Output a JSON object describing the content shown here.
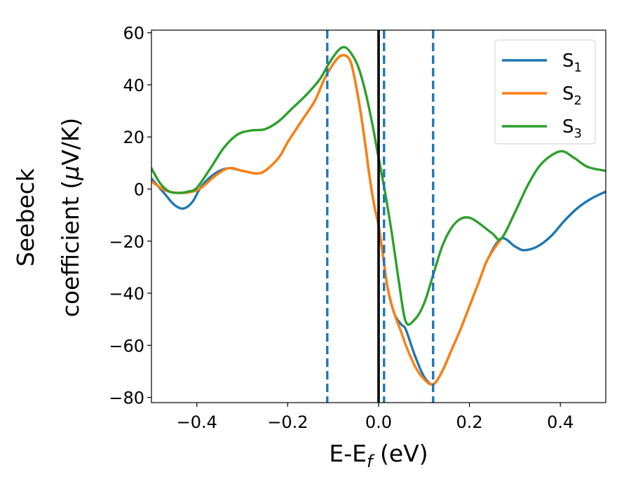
{
  "chart_data": {
    "type": "line",
    "xlabel": {
      "main": "E-E",
      "sub": "f",
      "unit": " (eV)"
    },
    "ylabel": {
      "line1": "Seebeck",
      "line2_pre": "coefficient  (",
      "line2_mu": "μ",
      "line2_post": "V/K)"
    },
    "xlim": [
      -0.5,
      0.5
    ],
    "ylim": [
      -82,
      61
    ],
    "xticks": [
      -0.4,
      -0.2,
      0.0,
      0.2,
      0.4
    ],
    "xtick_labels": [
      "−0.4",
      "−0.2",
      "0.0",
      "0.2",
      "0.4"
    ],
    "yticks": [
      -80,
      -60,
      -40,
      -20,
      0,
      20,
      40,
      60
    ],
    "ytick_labels": [
      "−80",
      "−60",
      "−40",
      "−20",
      "0",
      "20",
      "40",
      "60"
    ],
    "grid": false,
    "legend_position": "top-right",
    "vlines": [
      {
        "x": 0.0,
        "color": "#000000",
        "style": "solid"
      },
      {
        "x": -0.113,
        "color": "#1f77b4",
        "style": "dashed"
      },
      {
        "x": 0.012,
        "color": "#1f77b4",
        "style": "dashed"
      },
      {
        "x": 0.12,
        "color": "#1f77b4",
        "style": "dashed"
      }
    ],
    "series": [
      {
        "name": "S1",
        "label_main": "S",
        "label_sub": "1",
        "color": "#1f77b4",
        "x": [
          -0.5,
          -0.47,
          -0.45,
          -0.43,
          -0.41,
          -0.39,
          -0.36,
          -0.33,
          -0.3,
          -0.27,
          -0.25,
          -0.22,
          -0.2,
          -0.17,
          -0.14,
          -0.12,
          -0.1,
          -0.085,
          -0.07,
          -0.06,
          -0.05,
          -0.04,
          -0.03,
          -0.02,
          -0.01,
          0.0,
          0.01,
          0.02,
          0.035,
          0.05,
          0.06,
          0.08,
          0.1,
          0.12,
          0.14,
          0.16,
          0.18,
          0.2,
          0.22,
          0.24,
          0.27,
          0.3,
          0.32,
          0.35,
          0.38,
          0.41,
          0.44,
          0.47,
          0.5
        ],
        "y": [
          4,
          -2,
          -6,
          -7.5,
          -5,
          1,
          6,
          8,
          7,
          6,
          7,
          12,
          18,
          26,
          34,
          42,
          48,
          51,
          51,
          48,
          40,
          30,
          18,
          5,
          -6,
          -14,
          -26,
          -38,
          -48,
          -52,
          -54,
          -64,
          -72,
          -75,
          -70,
          -62,
          -54,
          -45,
          -36,
          -27,
          -19,
          -22,
          -23.5,
          -22,
          -18,
          -12,
          -7,
          -3.5,
          -1
        ]
      },
      {
        "name": "S2",
        "label_main": "S",
        "label_sub": "2",
        "color": "#ff7f0e",
        "x": [
          -0.5,
          -0.47,
          -0.44,
          -0.41,
          -0.39,
          -0.36,
          -0.33,
          -0.3,
          -0.27,
          -0.25,
          -0.22,
          -0.2,
          -0.17,
          -0.14,
          -0.12,
          -0.1,
          -0.085,
          -0.07,
          -0.06,
          -0.05,
          -0.04,
          -0.03,
          -0.02,
          -0.01,
          0.0,
          0.01,
          0.02,
          0.035,
          0.05,
          0.06,
          0.08,
          0.1,
          0.12,
          0.14,
          0.16,
          0.18,
          0.2,
          0.22,
          0.24,
          0.27
        ],
        "y": [
          3,
          -0.5,
          -1.5,
          -1,
          0.5,
          5,
          8,
          7,
          6,
          7,
          12,
          18,
          26,
          34,
          42,
          48,
          51,
          51,
          48,
          40,
          30,
          18,
          5,
          -6,
          -14,
          -26,
          -38,
          -48,
          -55,
          -60,
          -68,
          -73,
          -75,
          -70,
          -62,
          -54,
          -45,
          -36,
          -27,
          -19
        ]
      },
      {
        "name": "S3",
        "label_main": "S",
        "label_sub": "3",
        "color": "#2ca02c",
        "x": [
          -0.5,
          -0.48,
          -0.46,
          -0.44,
          -0.42,
          -0.4,
          -0.37,
          -0.34,
          -0.31,
          -0.28,
          -0.25,
          -0.22,
          -0.19,
          -0.16,
          -0.13,
          -0.11,
          -0.09,
          -0.075,
          -0.06,
          -0.045,
          -0.03,
          -0.015,
          0.0,
          0.015,
          0.03,
          0.045,
          0.06,
          0.08,
          0.1,
          0.12,
          0.14,
          0.16,
          0.18,
          0.2,
          0.22,
          0.25,
          0.27,
          0.3,
          0.33,
          0.36,
          0.4,
          0.43,
          0.46,
          0.5
        ],
        "y": [
          8,
          2,
          -1,
          -1.5,
          -1,
          0.5,
          8,
          16,
          21,
          22.5,
          23,
          26,
          31,
          36,
          42,
          48,
          53,
          54.5,
          52,
          47,
          38,
          26,
          12,
          -2,
          -18,
          -36,
          -51,
          -50,
          -44,
          -33,
          -22,
          -15,
          -11.5,
          -11,
          -13,
          -17,
          -19,
          -9,
          2,
          10,
          14.5,
          12,
          8.5,
          7
        ]
      }
    ]
  }
}
